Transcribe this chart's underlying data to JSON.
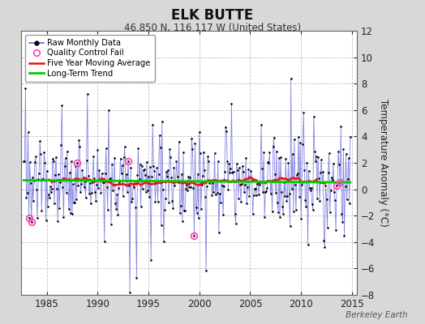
{
  "title": "ELK BUTTE",
  "subtitle": "46.850 N, 116.117 W (United States)",
  "ylabel": "Temperature Anomaly (°C)",
  "credit": "Berkeley Earth",
  "ylim": [
    -8,
    12
  ],
  "xlim": [
    1982.5,
    2015.5
  ],
  "yticks": [
    -8,
    -6,
    -4,
    -2,
    0,
    2,
    4,
    6,
    8,
    10,
    12
  ],
  "xticks": [
    1985,
    1990,
    1995,
    2000,
    2005,
    2010,
    2015
  ],
  "bg_color": "#d8d8d8",
  "plot_bg_color": "#ffffff",
  "raw_line_color": "#6666dd",
  "raw_dot_color": "#000000",
  "ma_color": "#ee1111",
  "trend_color": "#00cc00",
  "qc_color": "#ff44bb",
  "seed": 137
}
